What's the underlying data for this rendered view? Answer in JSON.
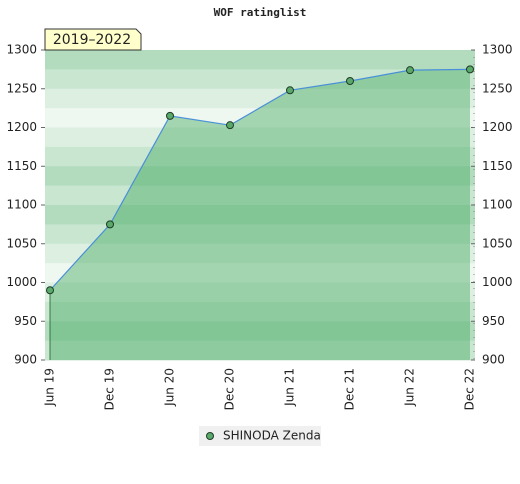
{
  "chart_data": {
    "type": "area",
    "title": "WOF ratinglist",
    "badge": "2019–2022",
    "categories": [
      "Jun 19",
      "Dec 19",
      "Jun 20",
      "Dec 20",
      "Jun 21",
      "Dec 21",
      "Jun 22",
      "Dec 22"
    ],
    "series": [
      {
        "name": "SHINODA Zenda",
        "color": "#5aa86a",
        "line_color": "#4a8fd8",
        "values": [
          990,
          1075,
          1215,
          1203,
          1248,
          1260,
          1274,
          1275
        ]
      }
    ],
    "ylim": [
      900,
      1300
    ],
    "yticks": [
      900,
      950,
      1000,
      1050,
      1100,
      1150,
      1200,
      1250,
      1300
    ],
    "y2lim": [
      900,
      1300
    ],
    "y2ticks": [
      900,
      950,
      1000,
      1050,
      1100,
      1150,
      1200,
      1250,
      1300
    ]
  }
}
